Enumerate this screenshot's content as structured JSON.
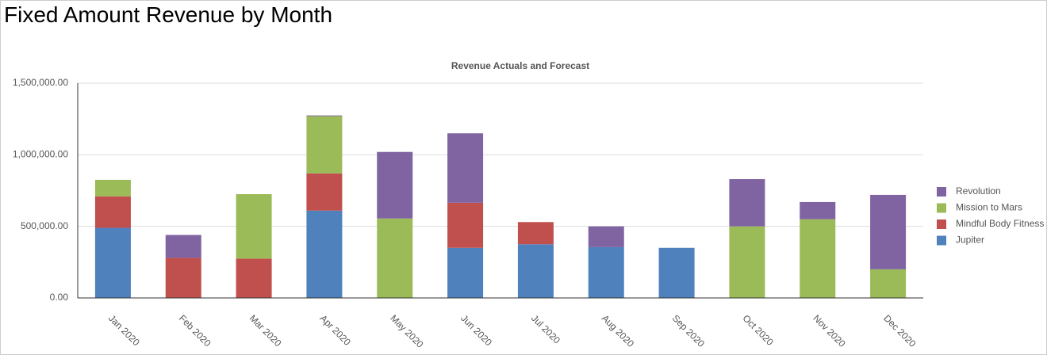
{
  "header": {
    "title": "Fixed Amount Revenue by Month"
  },
  "chart_data": {
    "type": "stacked-bar",
    "title": "Revenue Actuals and Forecast",
    "categories": [
      "Jan 2020",
      "Feb 2020",
      "Mar 2020",
      "Apr 2020",
      "May 2020",
      "Jun 2020",
      "Jul 2020",
      "Aug 2020",
      "Sep 2020",
      "Oct 2020",
      "Nov 2020",
      "Dec 2020"
    ],
    "series": [
      {
        "name": "Jupiter",
        "color": "#4f81bd",
        "values": [
          490000,
          0,
          0,
          610000,
          0,
          350000,
          375000,
          355000,
          350000,
          0,
          0,
          0
        ]
      },
      {
        "name": "Mindful Body Fitness",
        "color": "#c0504d",
        "values": [
          220000,
          280000,
          275000,
          260000,
          0,
          315000,
          155000,
          0,
          0,
          0,
          0,
          0
        ]
      },
      {
        "name": "Mission to Mars",
        "color": "#9bbb59",
        "values": [
          115000,
          0,
          450000,
          400000,
          555000,
          0,
          0,
          0,
          0,
          500000,
          550000,
          200000
        ]
      },
      {
        "name": "Revolution",
        "color": "#8064a2",
        "values": [
          0,
          160000,
          0,
          5000,
          465000,
          485000,
          0,
          145000,
          0,
          330000,
          120000,
          520000
        ]
      }
    ],
    "ylim": [
      0,
      1500000
    ],
    "yticks": [
      {
        "value": 0,
        "label": "0.00"
      },
      {
        "value": 500000,
        "label": "500,000.00"
      },
      {
        "value": 1000000,
        "label": "1,000,000.00"
      },
      {
        "value": 1500000,
        "label": "1,500,000.00"
      }
    ],
    "grid": true,
    "legend": "right"
  }
}
